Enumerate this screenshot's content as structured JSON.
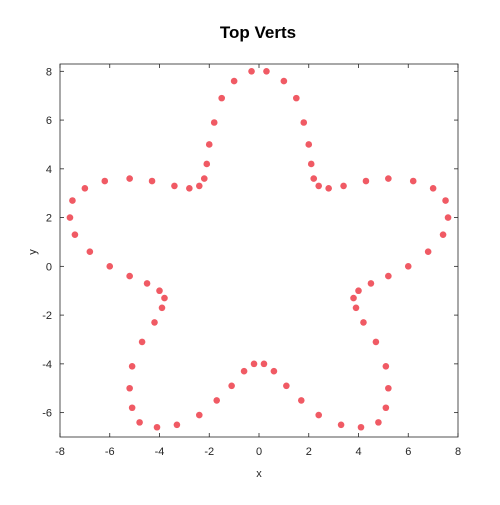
{
  "chart_data": {
    "type": "scatter",
    "title": "Top Verts",
    "xlabel": "x",
    "ylabel": "y",
    "xlim": [
      -8,
      8
    ],
    "ylim": [
      -7,
      8.3
    ],
    "xticks": [
      -8,
      -6,
      -4,
      -2,
      0,
      2,
      4,
      6,
      8
    ],
    "yticks": [
      -6,
      -4,
      -2,
      0,
      2,
      4,
      6,
      8
    ],
    "grid": false,
    "marker_color": "#f05a64",
    "series": [
      {
        "points": [
          [
            -0.3,
            8.0
          ],
          [
            0.3,
            8.0
          ],
          [
            -1.0,
            7.6
          ],
          [
            1.0,
            7.6
          ],
          [
            -1.5,
            6.9
          ],
          [
            1.5,
            6.9
          ],
          [
            -1.8,
            5.9
          ],
          [
            1.8,
            5.9
          ],
          [
            -2.0,
            5.0
          ],
          [
            2.0,
            5.0
          ],
          [
            -2.1,
            4.2
          ],
          [
            2.1,
            4.2
          ],
          [
            -2.2,
            3.6
          ],
          [
            2.2,
            3.6
          ],
          [
            -2.4,
            3.3
          ],
          [
            2.4,
            3.3
          ],
          [
            -2.8,
            3.2
          ],
          [
            2.8,
            3.2
          ],
          [
            -3.4,
            3.3
          ],
          [
            3.4,
            3.3
          ],
          [
            -4.3,
            3.5
          ],
          [
            4.3,
            3.5
          ],
          [
            -5.2,
            3.6
          ],
          [
            5.2,
            3.6
          ],
          [
            -6.2,
            3.5
          ],
          [
            6.2,
            3.5
          ],
          [
            -7.0,
            3.2
          ],
          [
            7.0,
            3.2
          ],
          [
            -7.5,
            2.7
          ],
          [
            7.5,
            2.7
          ],
          [
            -7.6,
            2.0
          ],
          [
            7.6,
            2.0
          ],
          [
            -7.4,
            1.3
          ],
          [
            7.4,
            1.3
          ],
          [
            -6.8,
            0.6
          ],
          [
            6.8,
            0.6
          ],
          [
            -6.0,
            0.0
          ],
          [
            6.0,
            0.0
          ],
          [
            -5.2,
            -0.4
          ],
          [
            5.2,
            -0.4
          ],
          [
            -4.5,
            -0.7
          ],
          [
            4.5,
            -0.7
          ],
          [
            -4.0,
            -1.0
          ],
          [
            4.0,
            -1.0
          ],
          [
            -3.8,
            -1.3
          ],
          [
            3.8,
            -1.3
          ],
          [
            -3.9,
            -1.7
          ],
          [
            3.9,
            -1.7
          ],
          [
            -4.2,
            -2.3
          ],
          [
            4.2,
            -2.3
          ],
          [
            -4.7,
            -3.1
          ],
          [
            4.7,
            -3.1
          ],
          [
            -5.1,
            -4.1
          ],
          [
            5.1,
            -4.1
          ],
          [
            -5.2,
            -5.0
          ],
          [
            5.2,
            -5.0
          ],
          [
            -5.1,
            -5.8
          ],
          [
            5.1,
            -5.8
          ],
          [
            -4.8,
            -6.4
          ],
          [
            4.8,
            -6.4
          ],
          [
            -4.1,
            -6.6
          ],
          [
            4.1,
            -6.6
          ],
          [
            -3.3,
            -6.5
          ],
          [
            3.3,
            -6.5
          ],
          [
            -2.4,
            -6.1
          ],
          [
            2.4,
            -6.1
          ],
          [
            -1.7,
            -5.5
          ],
          [
            1.7,
            -5.5
          ],
          [
            -1.1,
            -4.9
          ],
          [
            1.1,
            -4.9
          ],
          [
            -0.6,
            -4.3
          ],
          [
            0.6,
            -4.3
          ],
          [
            -0.2,
            -4.0
          ],
          [
            0.2,
            -4.0
          ]
        ]
      }
    ]
  }
}
